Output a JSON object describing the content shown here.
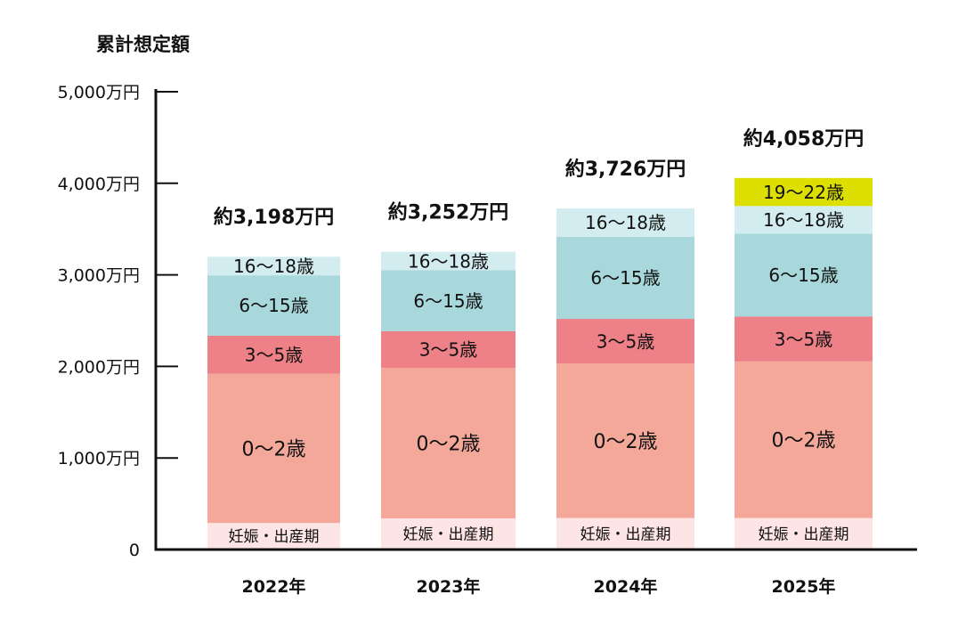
{
  "chart_data": {
    "type": "bar",
    "stacked": true,
    "title": "",
    "ylabel": "累計想定額",
    "xlabel": "",
    "ylim": [
      0,
      5000
    ],
    "yticks": [
      0,
      1000,
      2000,
      3000,
      4000,
      5000
    ],
    "ytick_labels": [
      "0",
      "1,000万円",
      "2,000万円",
      "3,000万円",
      "4,000万円",
      "5,000万円"
    ],
    "grid": false,
    "categories": [
      "2022年",
      "2023年",
      "2024年",
      "2025年"
    ],
    "totals": [
      3198,
      3252,
      3726,
      4058
    ],
    "total_labels": [
      "約3,198万円",
      "約3,252万円",
      "約3,726万円",
      "約4,058万円"
    ],
    "series": [
      {
        "name": "妊娠・出産期",
        "color": "#fde4e5",
        "values": [
          290,
          340,
          344,
          344
        ]
      },
      {
        "name": "0〜2歳",
        "color": "#f4a89a",
        "values": [
          1630,
          1645,
          1688,
          1710
        ]
      },
      {
        "name": "3〜5歳",
        "color": "#ee8087",
        "values": [
          415,
          400,
          487,
          490
        ]
      },
      {
        "name": "6〜15歳",
        "color": "#a8d8db",
        "values": [
          660,
          665,
          898,
          906
        ]
      },
      {
        "name": "16〜18歳",
        "color": "#d3ecf0",
        "values": [
          203,
          202,
          309,
          302
        ]
      },
      {
        "name": "19〜22歳",
        "color": "#dcdf00",
        "values": [
          0,
          0,
          0,
          306
        ]
      }
    ]
  }
}
